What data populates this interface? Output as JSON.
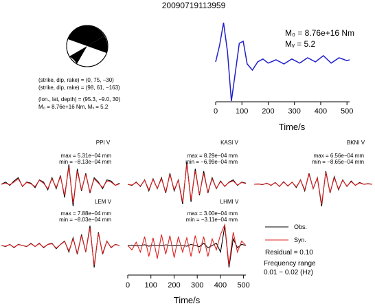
{
  "chart_data": {
    "type": "line",
    "title": "20090719113959",
    "source_params": {
      "lines": [
        "(strike, dip, rake) = (0, 75, −30)",
        "(strike, dip, rake) = (98, 61, −163)",
        "(lon., lat, depth) = (95.3, −9.0, 30)",
        "M₀ = 8.76e+16 Nm, Mᵥ = 5.2"
      ]
    },
    "stf": {
      "m0_label": "M₀ = 8.76e+16 Nm",
      "mw_label": "Mᵥ = 5.2",
      "xlabel": "Time/s",
      "xticks": [
        0,
        100,
        200,
        300,
        400,
        500
      ],
      "xlim": [
        0,
        510
      ],
      "color": "#1f1fcc",
      "x": [
        0,
        15,
        30,
        45,
        60,
        75,
        90,
        105,
        120,
        140,
        160,
        180,
        200,
        230,
        260,
        290,
        320,
        350,
        380,
        410,
        440,
        470,
        500,
        510
      ],
      "y": [
        0.05,
        0.45,
        1.0,
        0.3,
        -0.9,
        -0.2,
        0.5,
        0.55,
        0.0,
        -0.15,
        0.05,
        0.12,
        0.02,
        0.1,
        0.0,
        0.12,
        0.02,
        0.15,
        0.05,
        0.2,
        0.02,
        0.15,
        0.08,
        0.1
      ]
    },
    "stations": [
      {
        "name": "PPI V",
        "max": "max = 5.31e−04 mm",
        "min": "min = −8.13e−04 mm",
        "obs": [
          0,
          0.1,
          -0.05,
          0.15,
          0.3,
          -0.1,
          0.1,
          0.05,
          -0.15,
          0.2,
          0.1,
          -0.25,
          0.3,
          -0.2,
          0.4,
          -0.6,
          0.9,
          -1.0,
          0.7,
          -0.3,
          0.5,
          -0.4,
          0.3,
          0.1,
          -0.2,
          0.2,
          0.15,
          -0.05,
          0.05
        ],
        "syn": [
          0,
          0.05,
          -0.02,
          0.1,
          0.25,
          -0.08,
          0.08,
          0.02,
          -0.1,
          0.18,
          0.05,
          -0.2,
          0.25,
          -0.15,
          0.35,
          -0.5,
          0.8,
          -0.85,
          0.6,
          -0.25,
          0.45,
          -0.35,
          0.25,
          0.05,
          -0.15,
          0.15,
          0.1,
          -0.05,
          0.02
        ]
      },
      {
        "name": "KASI V",
        "max": "max = 8.29e−04 mm",
        "min": "min = −6.99e−04 mm",
        "obs": [
          0,
          -0.05,
          0.1,
          -0.1,
          0.2,
          -0.3,
          0.25,
          -0.2,
          0.3,
          -0.4,
          0.5,
          -0.3,
          0.2,
          -0.9,
          1.0,
          -0.8,
          0.7,
          -0.5,
          0.6,
          -0.4,
          0.3,
          -0.2,
          0.15,
          -0.1,
          0.1,
          0.2,
          -0.05,
          0.1,
          0.05
        ],
        "syn": [
          0,
          -0.03,
          0.08,
          -0.08,
          0.18,
          -0.25,
          0.22,
          -0.18,
          0.25,
          -0.35,
          0.45,
          -0.25,
          0.18,
          -0.8,
          0.9,
          -0.7,
          0.6,
          -0.45,
          0.5,
          -0.35,
          0.25,
          -0.18,
          0.12,
          -0.08,
          0.08,
          0.15,
          -0.03,
          0.08,
          0.03
        ]
      },
      {
        "name": "BKNI V",
        "max": "max = 6.56e−04 mm",
        "min": "min = −8.65e−04 mm",
        "obs": [
          0,
          0.02,
          -0.02,
          0.05,
          -0.05,
          0.08,
          -0.1,
          0.12,
          -0.08,
          0.1,
          -0.15,
          0.2,
          -0.3,
          0.5,
          -0.2,
          0.3,
          -1.0,
          0.6,
          -0.4,
          0.35,
          -0.25,
          0.2,
          -0.1,
          0.15,
          -0.05,
          0.08,
          0.0,
          0.03,
          0.0
        ],
        "syn": [
          0,
          0.01,
          -0.01,
          0.04,
          -0.04,
          0.07,
          -0.09,
          0.1,
          -0.07,
          0.09,
          -0.12,
          0.18,
          -0.25,
          0.45,
          -0.18,
          0.28,
          -0.9,
          0.55,
          -0.38,
          0.3,
          -0.22,
          0.18,
          -0.08,
          0.12,
          -0.04,
          0.06,
          0.0,
          0.02,
          0.0
        ]
      },
      {
        "name": "LEM V",
        "max": "max = 7.88e−04 mm",
        "min": "min = −8.03e−04 mm",
        "obs": [
          0,
          -0.05,
          0.05,
          -0.1,
          0.05,
          0.0,
          -0.05,
          0.1,
          -0.05,
          0.1,
          -0.1,
          0.05,
          0.1,
          -0.15,
          0.05,
          0.2,
          -0.3,
          0.35,
          -0.4,
          0.5,
          -0.3,
          0.9,
          -1.0,
          0.6,
          -0.4,
          0.2,
          -0.1,
          0.05,
          0.0
        ],
        "syn": [
          0,
          -0.03,
          0.04,
          -0.08,
          0.04,
          0.0,
          -0.04,
          0.08,
          -0.04,
          0.08,
          -0.08,
          0.04,
          0.08,
          -0.12,
          0.04,
          0.18,
          -0.25,
          0.3,
          -0.35,
          0.45,
          -0.28,
          0.8,
          -0.9,
          0.55,
          -0.35,
          0.18,
          -0.08,
          0.04,
          0.0
        ]
      },
      {
        "name": "LHMI V",
        "max": "max = 3.00e−04 mm",
        "min": "min = −3.11e−04 mm",
        "obs": [
          0,
          0.02,
          -0.02,
          0.0,
          0.03,
          -0.03,
          0.02,
          0.0,
          -0.02,
          0.03,
          0.0,
          -0.02,
          0.02,
          0.0,
          -0.03,
          0.05,
          0.0,
          -0.05,
          0.1,
          -0.1,
          0.0,
          0.1,
          -0.3,
          0.9,
          -1.0,
          0.3,
          -0.1,
          0.05,
          0.0
        ],
        "syn": [
          0,
          -0.2,
          0.15,
          -0.3,
          0.4,
          -0.5,
          0.35,
          -0.6,
          0.5,
          -0.4,
          0.45,
          -0.55,
          0.4,
          -0.3,
          0.35,
          -0.5,
          0.45,
          -0.35,
          0.4,
          -0.5,
          0.3,
          -0.2,
          0.5,
          0.95,
          -0.9,
          0.6,
          -0.3,
          0.2,
          0.0
        ]
      }
    ],
    "wave_xlabel": "Time/s",
    "wave_xticks": [
      0,
      100,
      200,
      300,
      400,
      500
    ],
    "wave_xlim": [
      0,
      510
    ],
    "legend": {
      "obs": "Obs.",
      "syn": "Syn.",
      "obs_color": "#000000",
      "syn_color": "#e02020"
    },
    "residual": "Residual = 0.10",
    "freq_label": "Frequency range",
    "freq_range": "0.01 − 0.02 (Hz)"
  }
}
